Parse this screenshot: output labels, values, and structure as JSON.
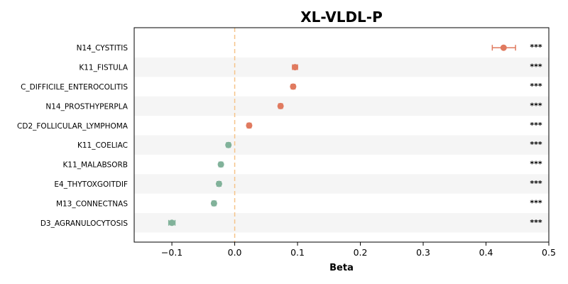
{
  "chart_data": {
    "type": "scatter",
    "title": "XL-VLDL-P",
    "xlabel": "Beta",
    "xlim": [
      -0.16,
      0.5
    ],
    "xticks": [
      -0.1,
      0.0,
      0.1,
      0.2,
      0.3,
      0.4,
      0.5
    ],
    "xtick_labels": [
      "−0.1",
      "0.0",
      "0.1",
      "0.2",
      "0.3",
      "0.4",
      "0.5"
    ],
    "reference_line_x": 0,
    "reference_line_color": "#f5c48a",
    "positive_color": "#e07a5f",
    "negative_color": "#81b29a",
    "band_color": "#f5f5f5",
    "grid": false,
    "points": [
      {
        "label": "N14_CYSTITIS",
        "beta": 0.428,
        "ci_low": 0.41,
        "ci_high": 0.447,
        "sig": "***"
      },
      {
        "label": "K11_FISTULA",
        "beta": 0.096,
        "ci_low": 0.092,
        "ci_high": 0.1,
        "sig": "***"
      },
      {
        "label": "C_DIFFICILE_ENTEROCOLITIS",
        "beta": 0.093,
        "ci_low": 0.09,
        "ci_high": 0.096,
        "sig": "***"
      },
      {
        "label": "N14_PROSTHYPERPLA",
        "beta": 0.073,
        "ci_low": 0.07,
        "ci_high": 0.076,
        "sig": "***"
      },
      {
        "label": "CD2_FOLLICULAR_LYMPHOMA",
        "beta": 0.023,
        "ci_low": 0.02,
        "ci_high": 0.026,
        "sig": "***"
      },
      {
        "label": "K11_COELIAC",
        "beta": -0.01,
        "ci_low": -0.013,
        "ci_high": -0.007,
        "sig": "***"
      },
      {
        "label": "K11_MALABSORB",
        "beta": -0.022,
        "ci_low": -0.025,
        "ci_high": -0.019,
        "sig": "***"
      },
      {
        "label": "E4_THYTOXGOITDIF",
        "beta": -0.025,
        "ci_low": -0.028,
        "ci_high": -0.022,
        "sig": "***"
      },
      {
        "label": "M13_CONNECTNAS",
        "beta": -0.033,
        "ci_low": -0.036,
        "ci_high": -0.03,
        "sig": "***"
      },
      {
        "label": "D3_AGRANULOCYTOSIS",
        "beta": -0.1,
        "ci_low": -0.105,
        "ci_high": -0.095,
        "sig": "***"
      }
    ]
  }
}
